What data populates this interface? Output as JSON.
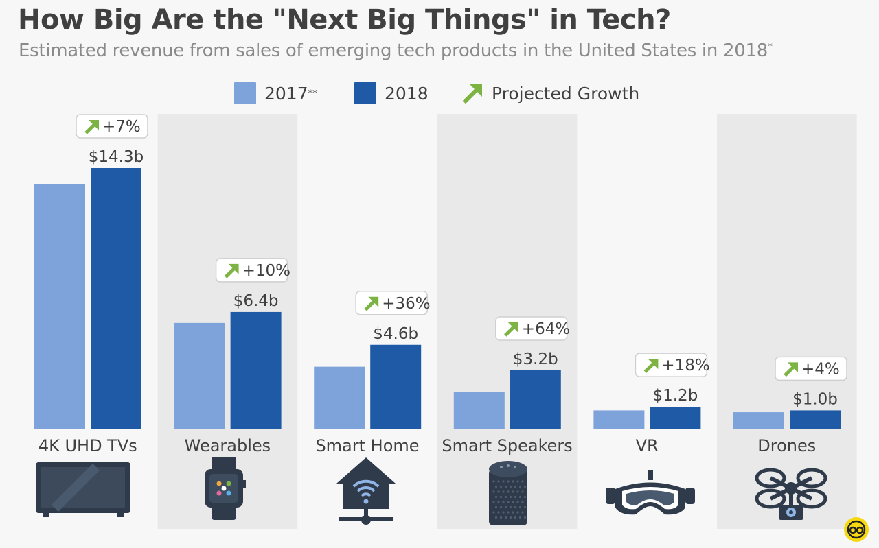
{
  "title": "How Big Are the \"Next Big Things\" in Tech?",
  "subtitle": "Estimated revenue from sales of emerging tech products in the United States in 2018",
  "subtitle_footnote_mark": "*",
  "legend": {
    "items": [
      {
        "label": "2017",
        "mark": "**",
        "color": "#7da3da"
      },
      {
        "label": "2018",
        "mark": "",
        "color": "#1f5aa6"
      },
      {
        "label": "Projected Growth",
        "mark": "",
        "icon": "green-arrow-icon",
        "color": "#7cb342"
      }
    ]
  },
  "colors": {
    "series_2017": "#7da3da",
    "series_2018": "#1f5aa6",
    "growth_arrow": "#7cb342",
    "panel_shade": "#e9e9e9",
    "icon": "#2f3b4a"
  },
  "chart_data": {
    "type": "bar",
    "categories": [
      "4K UHD TVs",
      "Wearables",
      "Smart Home",
      "Smart Speakers",
      "VR",
      "Drones"
    ],
    "series": [
      {
        "name": "2017",
        "values": [
          13.4,
          5.8,
          3.4,
          2.0,
          1.0,
          0.9
        ]
      },
      {
        "name": "2018",
        "values": [
          14.3,
          6.4,
          4.6,
          3.2,
          1.2,
          1.0
        ]
      }
    ],
    "value_labels_2018": [
      "$14.3b",
      "$6.4b",
      "$4.6b",
      "$3.2b",
      "$1.2b",
      "$1.0b"
    ],
    "growth_labels": [
      "+7%",
      "+10%",
      "+36%",
      "+64%",
      "+18%",
      "+4%"
    ],
    "category_icons": [
      "tv-icon",
      "smartwatch-icon",
      "smart-home-icon",
      "smart-speaker-icon",
      "vr-headset-icon",
      "drone-icon"
    ],
    "ylim": [
      0,
      14.3
    ],
    "grid": false,
    "legend_position": "top-center"
  }
}
